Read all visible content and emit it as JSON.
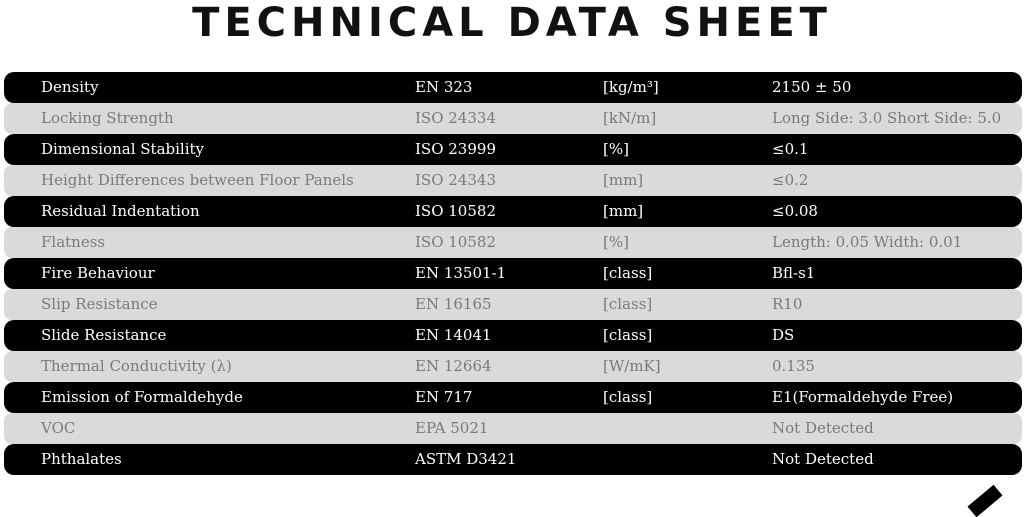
{
  "title": "TECHNICAL DATA SHEET",
  "rows": [
    [
      "Density",
      "EN 323",
      "[kg/m³]",
      "2150 ± 50"
    ],
    [
      "Locking Strength",
      "ISO 24334",
      "[kN/m]",
      "Long Side: 3.0 Short Side: 5.0"
    ],
    [
      "Dimensional Stability",
      "ISO 23999",
      "[%]",
      "≤0.1"
    ],
    [
      "Height Differences between Floor Panels",
      "ISO 24343",
      "[mm]",
      "≤0.2"
    ],
    [
      "Residual Indentation",
      "ISO 10582",
      "[mm]",
      "≤0.08"
    ],
    [
      "Flatness",
      "ISO 10582",
      "[%]",
      "Length: 0.05 Width: 0.01"
    ],
    [
      "Fire Behaviour",
      "EN 13501-1",
      "[class]",
      "Bfl-s1"
    ],
    [
      "Slip Resistance",
      "EN 16165",
      "[class]",
      "R10"
    ],
    [
      "Slide Resistance",
      "EN 14041",
      "[class]",
      "DS"
    ],
    [
      "Thermal Conductivity (λ)",
      "EN 12664",
      "[W/mK]",
      "0.135"
    ],
    [
      "Emission of Formaldehyde",
      "EN 717",
      "[class]",
      "E1(Formaldehyde Free)"
    ],
    [
      "VOC",
      "EPA 5021",
      "",
      "Not Detected"
    ],
    [
      "Phthalates",
      "ASTM D3421",
      "",
      "Not Detected"
    ]
  ],
  "colors": {
    "dark_row": "#000000",
    "light_row": "#dadada",
    "light_text": "#7a7a7a"
  }
}
